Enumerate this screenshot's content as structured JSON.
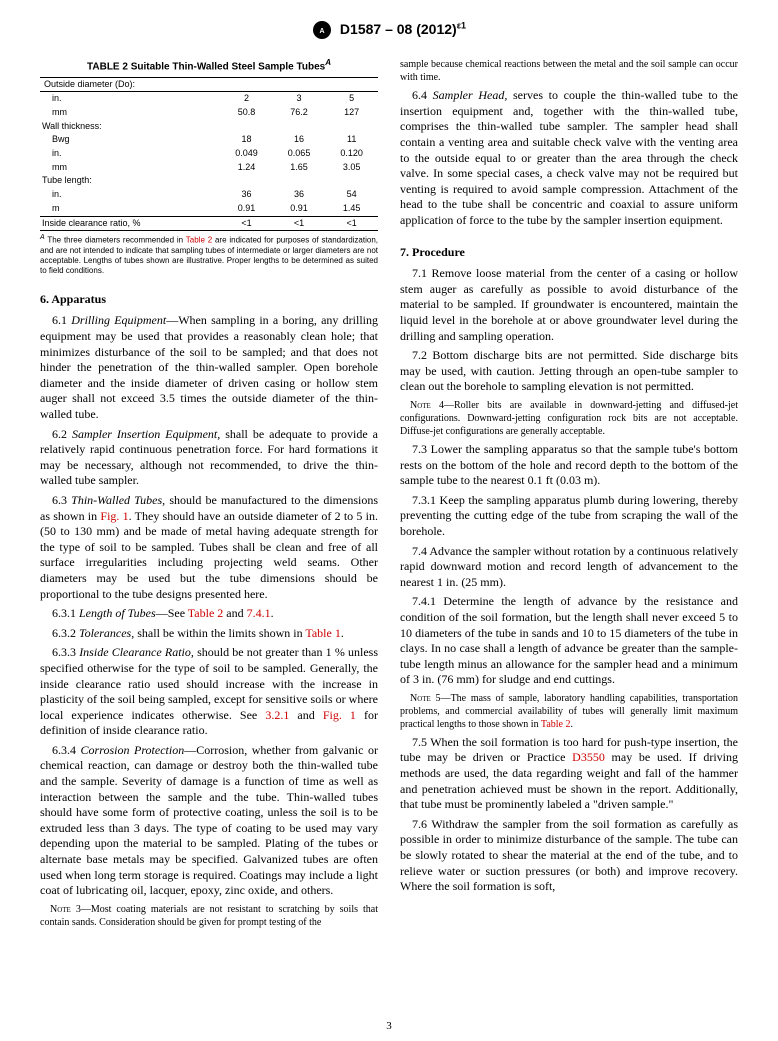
{
  "header": {
    "designation": "D1587 – 08 (2012)",
    "epsilon": "ε1"
  },
  "table2": {
    "title": "TABLE 2 Suitable Thin-Walled Steel Sample Tubes",
    "superscript": "A",
    "head_label": "Outside diameter (Do):",
    "rows": [
      {
        "label": "in.",
        "c1": "2",
        "c2": "3",
        "c3": "5",
        "indent": true
      },
      {
        "label": "mm",
        "c1": "50.8",
        "c2": "76.2",
        "c3": "127",
        "indent": true
      },
      {
        "label": "Wall thickness:",
        "c1": "",
        "c2": "",
        "c3": ""
      },
      {
        "label": "Bwg",
        "c1": "18",
        "c2": "16",
        "c3": "11",
        "indent": true
      },
      {
        "label": "in.",
        "c1": "0.049",
        "c2": "0.065",
        "c3": "0.120",
        "indent": true
      },
      {
        "label": "mm",
        "c1": "1.24",
        "c2": "1.65",
        "c3": "3.05",
        "indent": true
      },
      {
        "label": "Tube length:",
        "c1": "",
        "c2": "",
        "c3": ""
      },
      {
        "label": "in.",
        "c1": "36",
        "c2": "36",
        "c3": "54",
        "indent": true
      },
      {
        "label": "m",
        "c1": "0.91",
        "c2": "0.91",
        "c3": "1.45",
        "indent": true
      },
      {
        "label": "Inside clearance ratio, %",
        "c1": "<1",
        "c2": "<1",
        "c3": "<1",
        "border": true
      }
    ],
    "footnote_text_pre": "The three diameters recommended in ",
    "footnote_ref": "Table 2",
    "footnote_text_post": " are indicated for purposes of standardization, and are not intended to indicate that sampling tubes of intermediate or larger diameters are not acceptable. Lengths of tubes shown are illustrative. Proper lengths to be determined as suited to field conditions."
  },
  "leftcol": {
    "sec6": "6. Apparatus",
    "p6_1": "6.1 Drilling Equipment—When sampling in a boring, any drilling equipment may be used that provides a reasonably clean hole; that minimizes disturbance of the soil to be sampled; and that does not hinder the penetration of the thin-walled sampler. Open borehole diameter and the inside diameter of driven casing or hollow stem auger shall not exceed 3.5 times the outside diameter of the thin-walled tube.",
    "p6_2": "6.2 Sampler Insertion Equipment, shall be adequate to provide a relatively rapid continuous penetration force. For hard formations it may be necessary, although not recommended, to drive the thin-walled tube sampler.",
    "p6_3a": "6.3 Thin-Walled Tubes, should be manufactured to the dimensions as shown in ",
    "p6_3_ref1": "Fig. 1",
    "p6_3b": ". They should have an outside diameter of 2 to 5 in. (50 to 130 mm) and be made of metal having adequate strength for the type of soil to be sampled. Tubes shall be clean and free of all surface irregularities including projecting weld seams. Other diameters may be used but the tube dimensions should be proportional to the tube designs presented here.",
    "p6_3_1a": "6.3.1 Length of Tubes—See ",
    "p6_3_1_ref1": "Table 2",
    "p6_3_1_and": " and ",
    "p6_3_1_ref2": "7.4.1",
    "p6_3_2a": "6.3.2 Tolerances, shall be within the limits shown in ",
    "p6_3_2_ref": "Table 1",
    "p6_3_3a": "6.3.3 Inside Clearance Ratio, should be not greater than 1 % unless specified otherwise for the type of soil to be sampled. Generally, the inside clearance ratio used should increase with the increase in plasticity of the soil being sampled, except for sensitive soils or where local experience indicates otherwise. See ",
    "p6_3_3_ref1": "3.2.1",
    "p6_3_3_mid": " and ",
    "p6_3_3_ref2": "Fig. 1",
    "p6_3_3b": " for definition of inside clearance ratio.",
    "p6_3_4": "6.3.4 Corrosion Protection—Corrosion, whether from galvanic or chemical reaction, can damage or destroy both the thin-walled tube and the sample. Severity of damage is a function of time as well as interaction between the sample and the tube. Thin-walled tubes should have some form of protective coating, unless the soil is to be extruded less than 3 days. The type of coating to be used may vary depending upon the material to be sampled. Plating of the tubes or alternate base metals may be specified. Galvanized tubes are often used when long term storage is required. Coatings may include a light coat of lubricating oil, lacquer, epoxy, zinc oxide, and others.",
    "note3_label": "Note 3—",
    "note3": "Most coating materials are not resistant to scratching by soils that contain sands. Consideration should be given for prompt testing of the"
  },
  "rightcol": {
    "p_cont": "sample because chemical reactions between the metal and the soil sample can occur with time.",
    "p6_4": "6.4 Sampler Head, serves to couple the thin-walled tube to the insertion equipment and, together with the thin-walled tube, comprises the thin-walled tube sampler. The sampler head shall contain a venting area and suitable check valve with the venting area to the outside equal to or greater than the area through the check valve. In some special cases, a check valve may not be required but venting is required to avoid sample compression. Attachment of the head to the tube shall be concentric and coaxial to assure uniform application of force to the tube by the sampler insertion equipment.",
    "sec7": "7. Procedure",
    "p7_1": "7.1 Remove loose material from the center of a casing or hollow stem auger as carefully as possible to avoid disturbance of the material to be sampled. If groundwater is encountered, maintain the liquid level in the borehole at or above groundwater level during the drilling and sampling operation.",
    "p7_2": "7.2 Bottom discharge bits are not permitted. Side discharge bits may be used, with caution. Jetting through an open-tube sampler to clean out the borehole to sampling elevation is not permitted.",
    "note4_label": "Note 4—",
    "note4": "Roller bits are available in downward-jetting and diffused-jet configurations. Downward-jetting configuration rock bits are not acceptable. Diffuse-jet configurations are generally acceptable.",
    "p7_3": "7.3 Lower the sampling apparatus so that the sample tube's bottom rests on the bottom of the hole and record depth to the bottom of the sample tube to the nearest 0.1 ft (0.03 m).",
    "p7_3_1": "7.3.1 Keep the sampling apparatus plumb during lowering, thereby preventing the cutting edge of the tube from scraping the wall of the borehole.",
    "p7_4": "7.4 Advance the sampler without rotation by a continuous relatively rapid downward motion and record length of advancement to the nearest 1 in. (25 mm).",
    "p7_4_1": "7.4.1 Determine the length of advance by the resistance and condition of the soil formation, but the length shall never exceed 5 to 10 diameters of the tube in sands and 10 to 15 diameters of the tube in clays. In no case shall a length of advance be greater than the sample-tube length minus an allowance for the sampler head and a minimum of 3 in. (76 mm) for sludge and end cuttings.",
    "note5_label": "Note 5—",
    "note5a": "The mass of sample, laboratory handling capabilities, transportation problems, and commercial availability of tubes will generally limit maximum practical lengths to those shown in ",
    "note5_ref": "Table 2",
    "p7_5a": "7.5 When the soil formation is too hard for push-type insertion, the tube may be driven or Practice ",
    "p7_5_ref": "D3550",
    "p7_5b": " may be used. If driving methods are used, the data regarding weight and fall of the hammer and penetration achieved must be shown in the report. Additionally, that tube must be prominently labeled a \"driven sample.\"",
    "p7_6": "7.6 Withdraw the sampler from the soil formation as carefully as possible in order to minimize disturbance of the sample. The tube can be slowly rotated to shear the material at the end of the tube, and to relieve water or suction pressures (or both) and improve recovery. Where the soil formation is soft,"
  },
  "pagenum": "3"
}
